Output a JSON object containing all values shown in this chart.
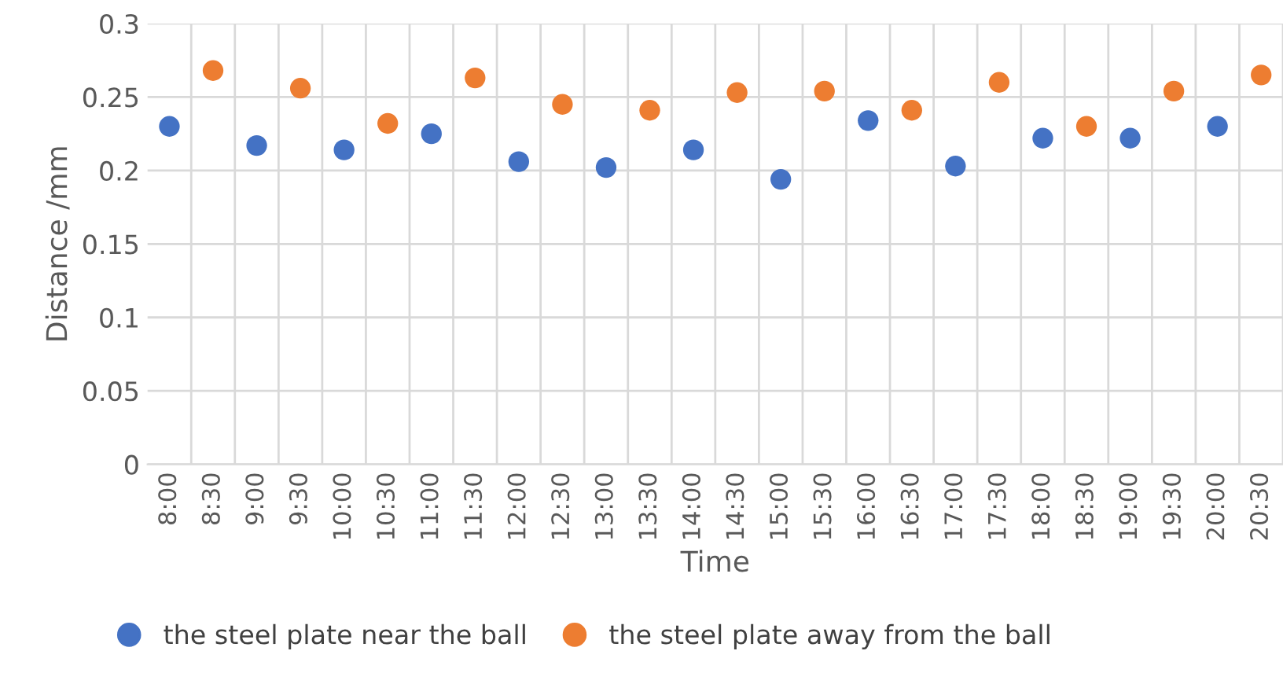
{
  "chart_data": {
    "type": "scatter",
    "xlabel": "Time",
    "ylabel": "Distance /mm",
    "categories": [
      "8:00",
      "8:30",
      "9:00",
      "9:30",
      "10:00",
      "10:30",
      "11:00",
      "11:30",
      "12:00",
      "12:30",
      "13:00",
      "13:30",
      "14:00",
      "14:30",
      "15:00",
      "15:30",
      "16:00",
      "16:30",
      "17:00",
      "17:30",
      "18:00",
      "18:30",
      "19:00",
      "19:30",
      "20:00",
      "20:30"
    ],
    "series": [
      {
        "name": "the steel plate near the ball",
        "color": "#4472c4",
        "values": [
          0.23,
          null,
          0.217,
          null,
          0.214,
          null,
          0.225,
          null,
          0.206,
          null,
          0.202,
          null,
          0.214,
          null,
          0.194,
          null,
          0.234,
          null,
          0.203,
          null,
          0.222,
          null,
          0.222,
          null,
          0.23,
          null
        ]
      },
      {
        "name": "the steel plate away from the ball",
        "color": "#ed7d31",
        "values": [
          null,
          0.268,
          null,
          0.256,
          null,
          0.232,
          null,
          0.263,
          null,
          0.245,
          null,
          0.241,
          null,
          0.253,
          null,
          0.254,
          null,
          0.241,
          null,
          0.26,
          null,
          0.23,
          null,
          0.254,
          null,
          0.265
        ]
      }
    ],
    "ylim": [
      0,
      0.3
    ],
    "yticks": [
      0,
      0.05,
      0.1,
      0.15,
      0.2,
      0.25,
      0.3
    ],
    "grid": true,
    "legend": "bottom",
    "marker": "circle"
  }
}
